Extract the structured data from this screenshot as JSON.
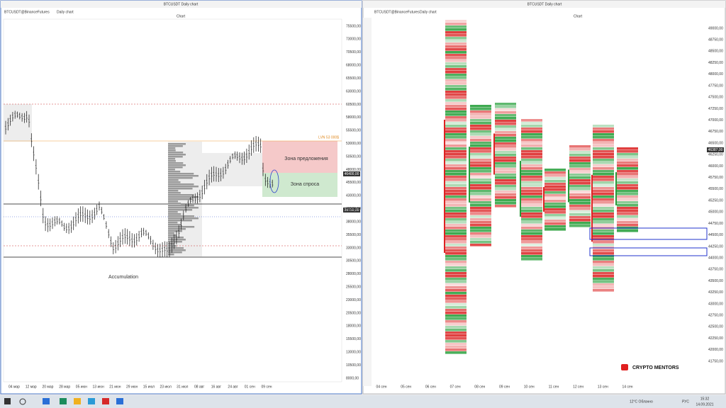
{
  "left_window": {
    "title": "BTCUSDT Daily chart",
    "tabs": [
      "BTCUSDT@BinanceFutures",
      "Daily chart"
    ],
    "panel_label": "Chart",
    "price_axis": [
      "75500,00",
      "73000,00",
      "70500,00",
      "68000,00",
      "65500,00",
      "63000,00",
      "60500,00",
      "58000,00",
      "55500,00",
      "53000,00",
      "50500,00",
      "48000,00",
      "45500,00",
      "43000,00",
      "40500,00",
      "38000,00",
      "35500,00",
      "33000,00",
      "30500,00",
      "28000,00",
      "25500,00",
      "23000,00",
      "20500,00",
      "18000,00",
      "15500,00",
      "13000,00",
      "10500,00",
      "8000,00"
    ],
    "date_axis": [
      "04 мар",
      "12 мар",
      "20 мар",
      "28 мар",
      "05 июн",
      "13 июн",
      "21 июн",
      "29 июн",
      "15 июл",
      "23 июл",
      "31 июл",
      "08 авг",
      "16 авг",
      "24 авг",
      "01 сен",
      "09 сен"
    ],
    "price_markers": [
      "46400,00",
      "39750,00"
    ],
    "annotations": {
      "lvn": "LVN 53 000$",
      "supply": "Зона предложения",
      "demand": "Зона спроса",
      "accumulation": "Accumulation"
    }
  },
  "right_window": {
    "title": "BTCUSDT Daily chart",
    "tabs": [
      "BTCUSDT@BinanceFutures",
      "Daily chart"
    ],
    "panel_label": "Chart",
    "price_axis": [
      "49000,00",
      "48750,00",
      "48500,00",
      "48250,00",
      "48000,00",
      "47750,00",
      "47500,00",
      "47250,00",
      "47000,00",
      "46750,00",
      "46500,00",
      "46250,00",
      "46000,00",
      "45750,00",
      "45500,00",
      "45250,00",
      "45000,00",
      "44750,00",
      "44500,00",
      "44250,00",
      "44000,00",
      "43750,00",
      "43500,00",
      "43250,00",
      "43000,00",
      "42750,00",
      "42500,00",
      "42250,00",
      "42000,00",
      "41750,00"
    ],
    "date_axis": [
      "04 сен",
      "05 сен",
      "06 сен",
      "07 сен",
      "08 сен",
      "09 сен",
      "10 сен",
      "11 сен",
      "12 сен",
      "13 сен",
      "14 сен"
    ],
    "price_marker": "46387,00",
    "watermark": "CRYPTO MENTORS"
  },
  "taskbar": {
    "weather": "12°C Облачно",
    "language": "РУС",
    "time": "15:32",
    "date": "14.09.2021"
  }
}
